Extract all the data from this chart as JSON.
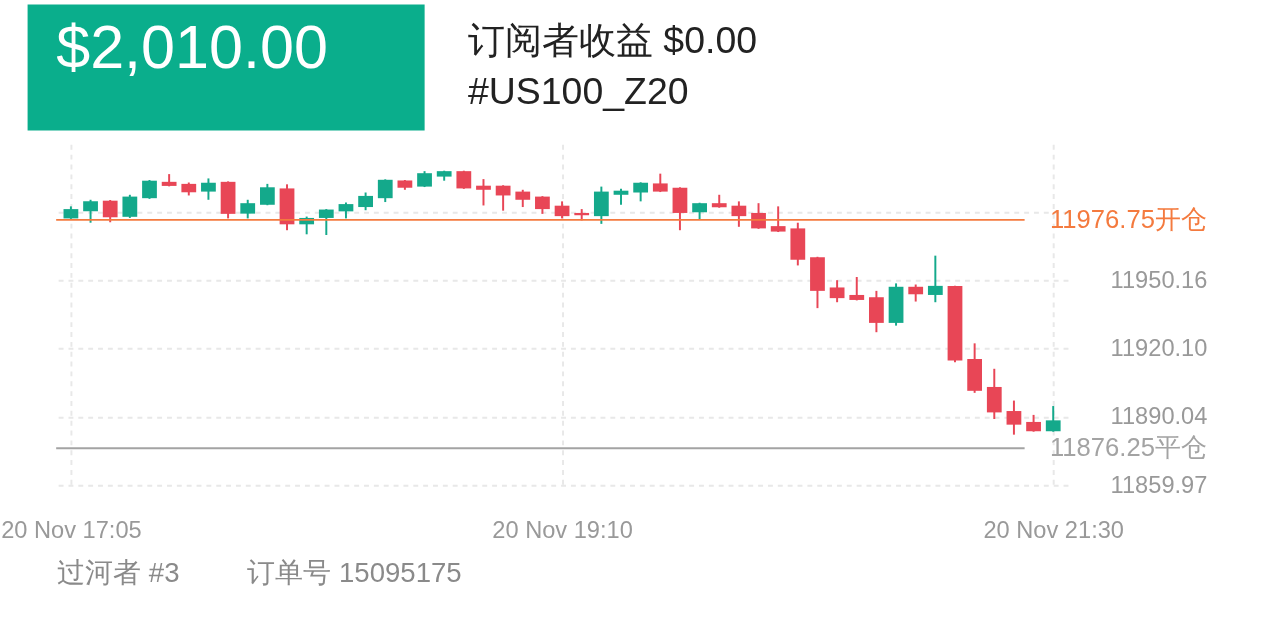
{
  "chart_data": {
    "type": "candlestick",
    "annotations": [
      "$2,010.00",
      "订阅者收益 $0.00",
      "#US100_Z20",
      "过河者 #3",
      "订单号 15095175"
    ],
    "categories": [
      "20 Nov 17:05",
      null,
      null,
      null,
      null,
      null,
      null,
      null,
      null,
      null,
      null,
      null,
      null,
      null,
      null,
      null,
      null,
      null,
      null,
      null,
      null,
      null,
      null,
      null,
      null,
      "20 Nov 19:10",
      null,
      null,
      null,
      null,
      null,
      null,
      null,
      null,
      null,
      null,
      null,
      null,
      null,
      null,
      null,
      null,
      null,
      null,
      null,
      null,
      null,
      null,
      null,
      null,
      "20 Nov 21:30"
    ],
    "ohlc": [
      [
        11977.4,
        11982.7,
        11977.2,
        11981.5
      ],
      [
        11980.5,
        11985.6,
        11975.5,
        11984.9
      ],
      [
        11985.2,
        11985.5,
        11975.7,
        11977.9
      ],
      [
        11978.1,
        11987.8,
        11977.6,
        11987.0
      ],
      [
        11986.3,
        11994.3,
        11986.0,
        11994.0
      ],
      [
        11993.5,
        11996.9,
        11991.5,
        11991.7
      ],
      [
        11992.6,
        11993.2,
        11987.5,
        11988.9
      ],
      [
        11989.2,
        11995.0,
        11985.6,
        11993.1
      ],
      [
        11993.5,
        11993.7,
        11977.4,
        11979.4
      ],
      [
        11979.5,
        11985.6,
        11977.4,
        11984.1
      ],
      [
        11983.4,
        11992.6,
        11983.2,
        11991.1
      ],
      [
        11990.6,
        11992.4,
        11972.2,
        11974.8
      ],
      [
        11974.8,
        11978.2,
        11970.4,
        11977.6
      ],
      [
        11977.6,
        11981.5,
        11970.1,
        11981.3
      ],
      [
        11980.5,
        11984.4,
        11977.4,
        11983.7
      ],
      [
        11982.4,
        11988.8,
        11981.0,
        11987.3
      ],
      [
        11986.3,
        11994.6,
        11984.6,
        11994.4
      ],
      [
        11994.1,
        11994.3,
        11990.0,
        11990.9
      ],
      [
        11991.4,
        11998.2,
        11991.2,
        11997.3
      ],
      [
        11995.8,
        11998.4,
        11994.0,
        11998.2
      ],
      [
        11998.2,
        11998.4,
        11990.4,
        11990.6
      ],
      [
        11991.8,
        11994.7,
        11983.1,
        11990.0
      ],
      [
        11991.8,
        11992.0,
        11980.8,
        11987.5
      ],
      [
        11989.2,
        11990.0,
        11982.4,
        11985.6
      ],
      [
        11987.0,
        11987.2,
        11979.4,
        11981.5
      ],
      [
        11983.0,
        11984.9,
        11977.4,
        11978.4
      ],
      [
        11979.8,
        11981.5,
        11976.5,
        11978.8
      ],
      [
        11978.4,
        11991.4,
        11975.0,
        11989.2
      ],
      [
        11987.8,
        11990.4,
        11983.4,
        11989.6
      ],
      [
        11988.8,
        11993.3,
        11984.9,
        11993.1
      ],
      [
        11992.8,
        11997.1,
        11989.0,
        11989.2
      ],
      [
        11990.9,
        11991.1,
        11972.2,
        11979.8
      ],
      [
        11980.1,
        11984.3,
        11976.8,
        11984.1
      ],
      [
        11984.1,
        11987.8,
        11982.1,
        11982.3
      ],
      [
        11983.0,
        11984.9,
        11973.7,
        11978.4
      ],
      [
        11979.8,
        11984.1,
        11972.8,
        11973.0
      ],
      [
        11974.0,
        11982.7,
        11971.4,
        11971.6
      ],
      [
        11973.0,
        11975.5,
        11956.7,
        11959.2
      ],
      [
        11960.3,
        11960.5,
        11937.9,
        11945.5
      ],
      [
        11947.0,
        11950.2,
        11940.5,
        11942.3
      ],
      [
        11943.7,
        11951.6,
        11941.3,
        11941.5
      ],
      [
        11942.7,
        11945.5,
        11927.3,
        11931.4
      ],
      [
        11931.4,
        11948.8,
        11930.2,
        11947.3
      ],
      [
        11947.3,
        11948.3,
        11940.8,
        11944.0
      ],
      [
        11943.7,
        11961.0,
        11940.5,
        11947.7
      ],
      [
        11947.6,
        11947.8,
        11914.1,
        11914.8
      ],
      [
        11915.5,
        11922.4,
        11900.6,
        11901.5
      ],
      [
        11903.2,
        11911.2,
        11889.1,
        11892.0
      ],
      [
        11892.6,
        11897.2,
        11882.2,
        11886.6
      ],
      [
        11887.8,
        11890.9,
        11883.5,
        11883.7
      ],
      [
        11883.7,
        11894.8,
        11883.5,
        11888.5
      ]
    ],
    "colors": [
      "#14a98b",
      "#14a98b",
      "#e84656",
      "#14a98b",
      "#14a98b",
      "#e84656",
      "#e84656",
      "#14a98b",
      "#e84656",
      "#14a98b",
      "#14a98b",
      "#e84656",
      "#14a98b",
      "#14a98b",
      "#14a98b",
      "#14a98b",
      "#14a98b",
      "#e84656",
      "#14a98b",
      "#14a98b",
      "#e84656",
      "#e84656",
      "#e84656",
      "#e84656",
      "#e84656",
      "#e84656",
      "#e84656",
      "#14a98b",
      "#14a98b",
      "#14a98b",
      "#e84656",
      "#e84656",
      "#14a98b",
      "#e84656",
      "#e84656",
      "#e84656",
      "#e84656",
      "#e84656",
      "#e84656",
      "#e84656",
      "#e84656",
      "#e84656",
      "#14a98b",
      "#e84656",
      "#14a98b",
      "#e84656",
      "#e84656",
      "#e84656",
      "#e84656",
      "#e84656",
      "#14a98b"
    ],
    "ylim": [
      11858.2,
      12010.0
    ],
    "yticks": [
      11859.97,
      11890.04,
      {
        "value": 11920.1,
        "label": "11920.10"
      },
      11950.16,
      {
        "value": 11980.22,
        "label": null
      }
    ],
    "ref_lines": [
      {
        "axis": "y",
        "value": 11976.75,
        "label": "11976.75开仓",
        "color": "#f47a3e"
      },
      {
        "axis": "y",
        "value": 11876.25,
        "label": "11876.25平仓",
        "color": "#a3a3a3"
      }
    ],
    "grid": true
  }
}
